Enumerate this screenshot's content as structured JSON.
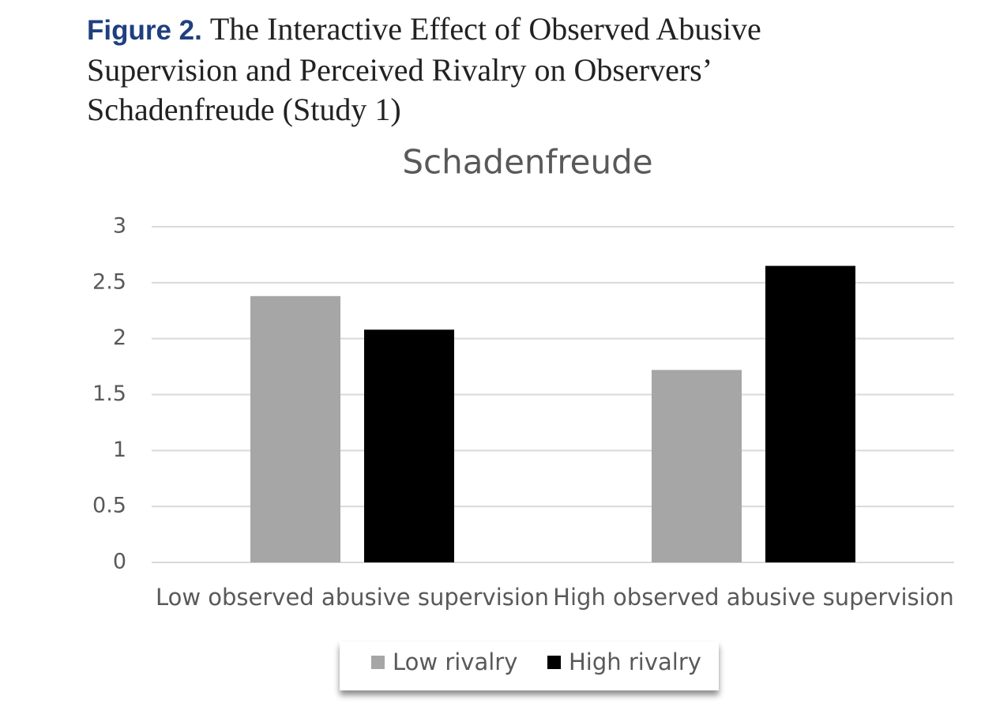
{
  "caption": {
    "label": "Figure 2.",
    "text": "The Interactive Effect of Observed Abusive Supervision and Perceived Rivalry on Observers’ Schadenfreude (Study 1)"
  },
  "chart_data": {
    "type": "bar",
    "title": "Schadenfreude",
    "categories": [
      "Low observed abusive supervision",
      "High observed abusive supervision"
    ],
    "series": [
      {
        "name": "Low rivalry",
        "color": "#a6a6a6",
        "values": [
          2.38,
          1.72
        ]
      },
      {
        "name": "High rivalry",
        "color": "#000000",
        "values": [
          2.08,
          2.65
        ]
      }
    ],
    "ylim": [
      0,
      3
    ],
    "yticks": [
      0,
      0.5,
      1,
      1.5,
      2,
      2.5,
      3
    ],
    "grid": true,
    "legend": "bottom"
  }
}
